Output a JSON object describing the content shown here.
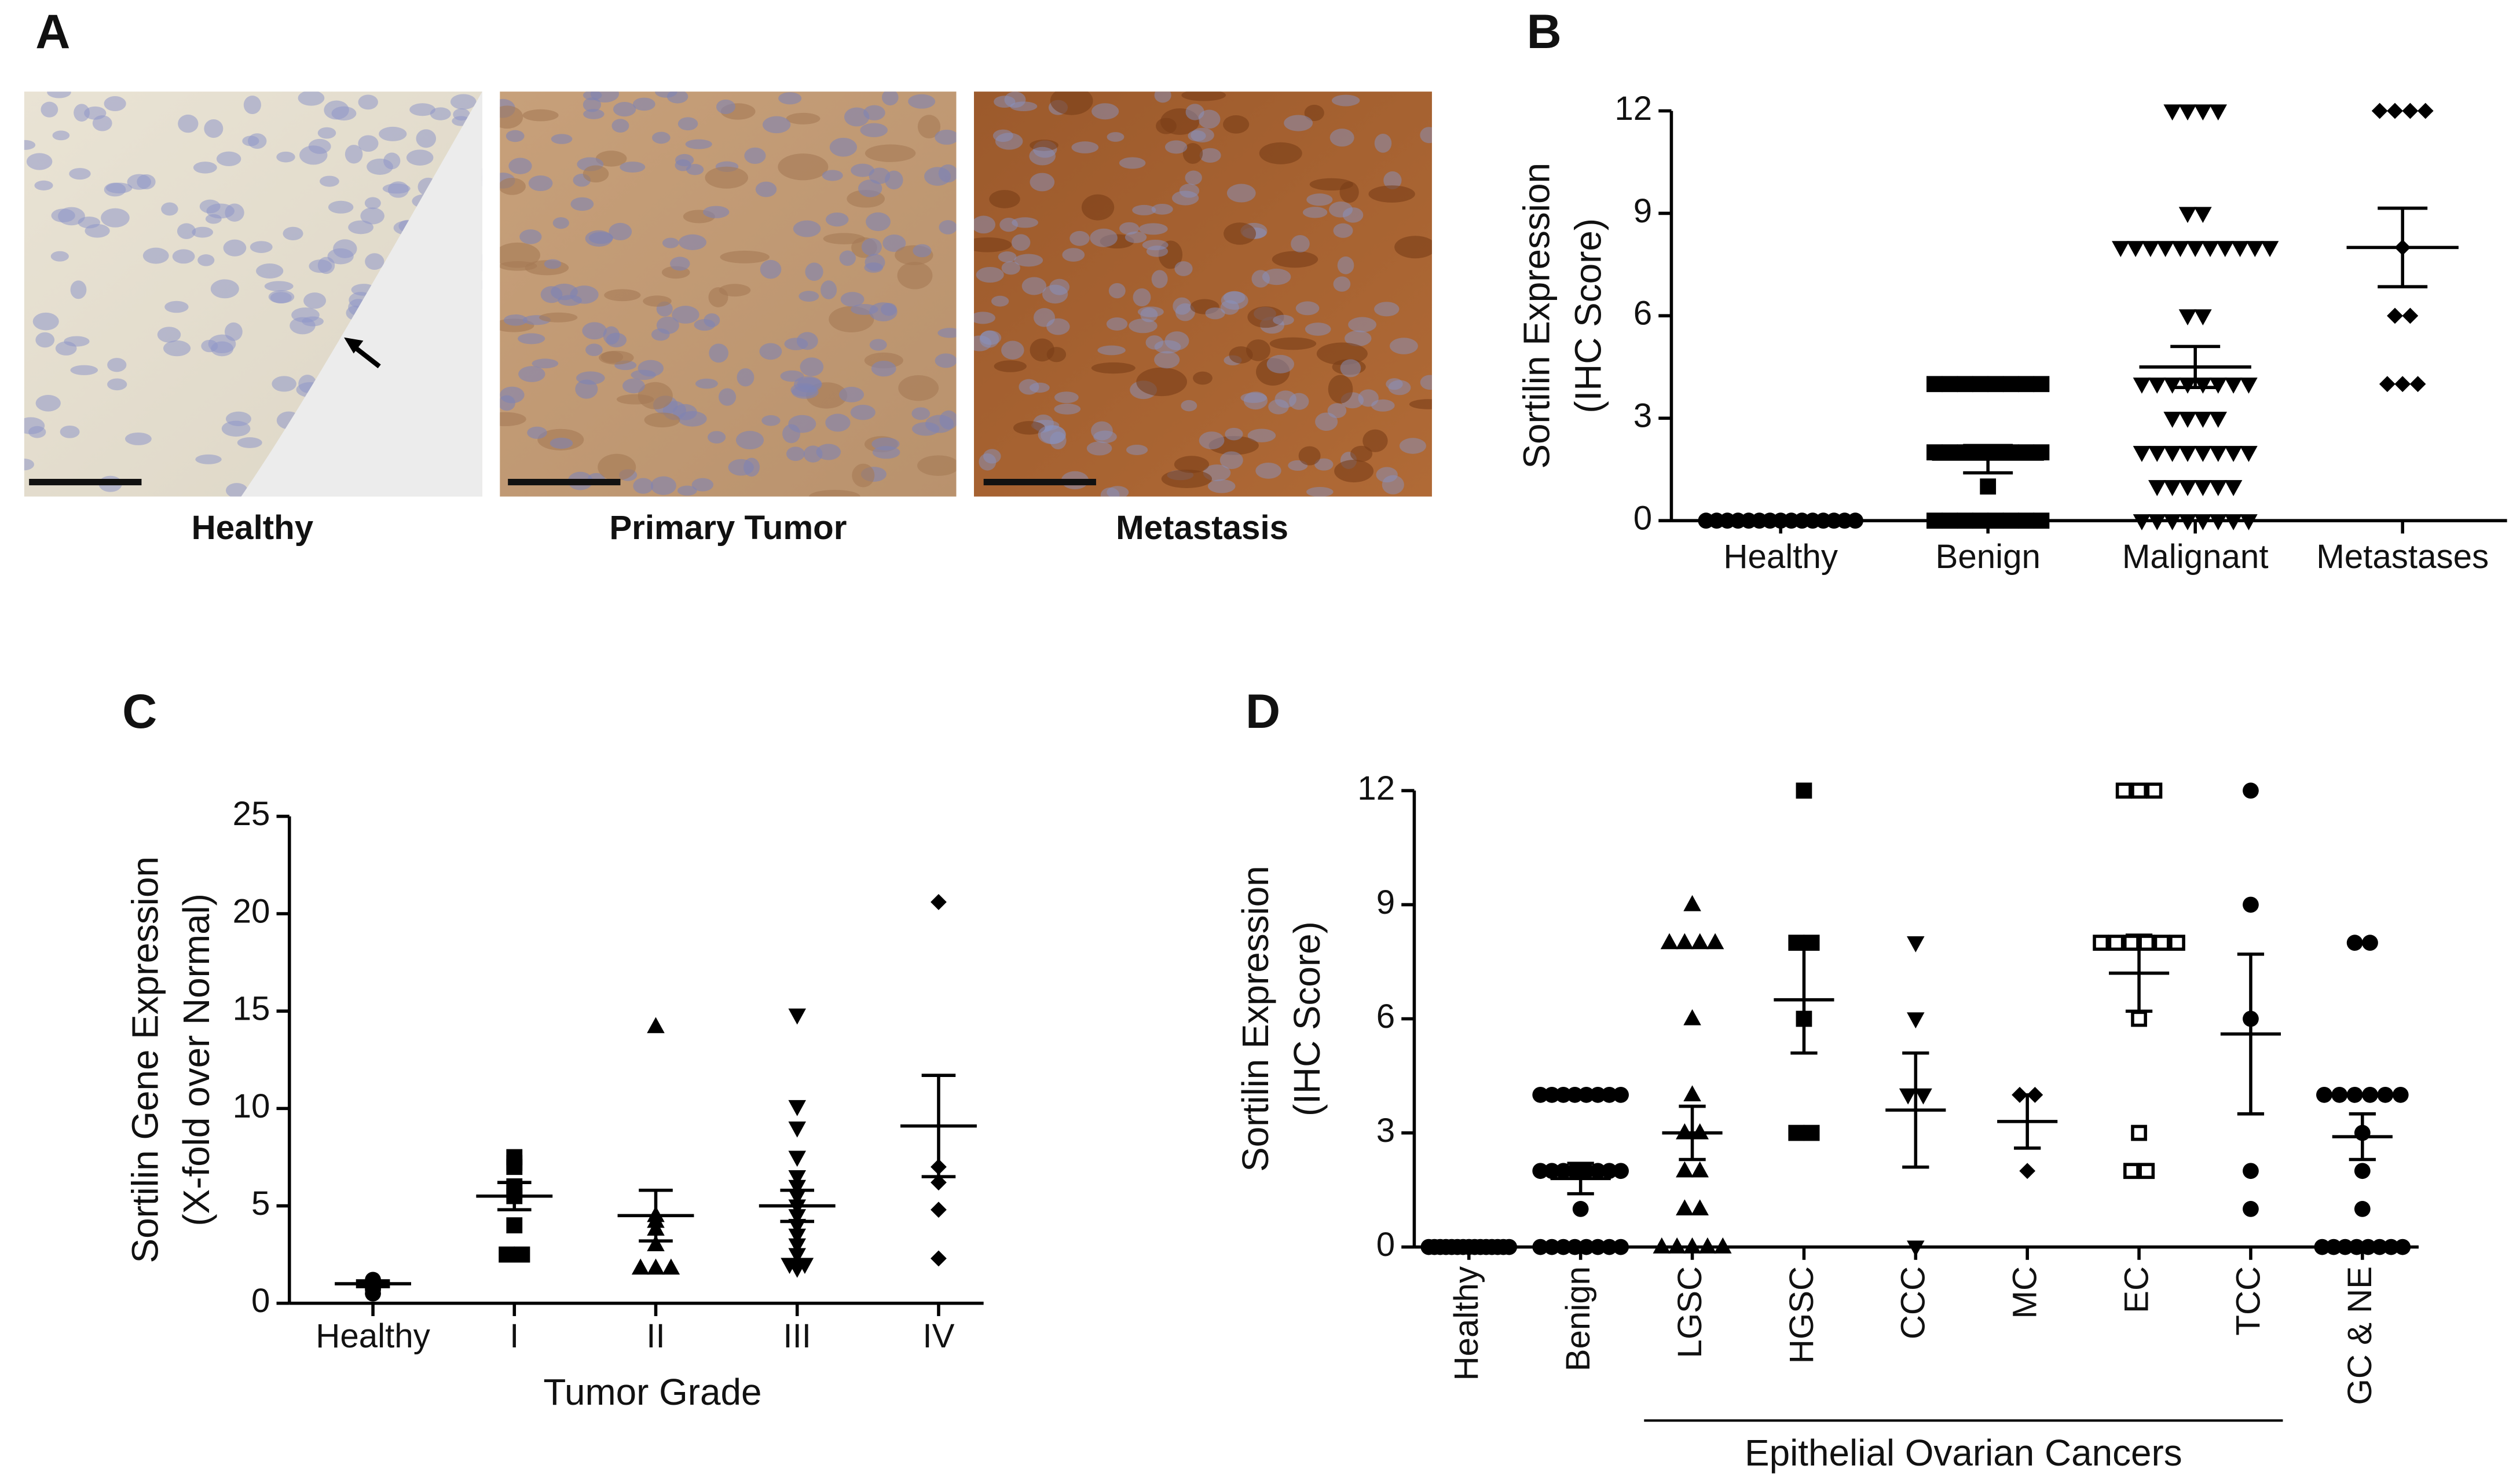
{
  "images": {
    "panel": "A",
    "captions": [
      "Healthy",
      "Primary Tumor",
      "Metastasis"
    ]
  },
  "chart_data": [
    {
      "type": "dot",
      "panel": "B",
      "ylabel": [
        "Sortilin Expression",
        "(IHC Score)"
      ],
      "categories": [
        "Healthy",
        "Benign",
        "Malignant",
        "Metastases"
      ],
      "markers": [
        "circle",
        "square",
        "triangle-down",
        "diamond"
      ],
      "color": "#000000",
      "values": [
        [
          0,
          0,
          0,
          0,
          0,
          0,
          0,
          0,
          0,
          0,
          0,
          0,
          0,
          0,
          0
        ],
        [
          0,
          0,
          0,
          0,
          0,
          0,
          0,
          0,
          1,
          2,
          2,
          2,
          2,
          2,
          2,
          2,
          2,
          4,
          4,
          4,
          4,
          4,
          4,
          4,
          4
        ],
        [
          0,
          0,
          0,
          0,
          0,
          0,
          0,
          0,
          1,
          1,
          1,
          1,
          1,
          1,
          2,
          2,
          2,
          2,
          2,
          2,
          2,
          2,
          3,
          3,
          3,
          3,
          4,
          4,
          4,
          4,
          4,
          4,
          4,
          4,
          6,
          6,
          8,
          8,
          8,
          8,
          8,
          8,
          8,
          8,
          8,
          8,
          8,
          9,
          9,
          12,
          12,
          12,
          12
        ],
        [
          4,
          4,
          4,
          6,
          6,
          8,
          12,
          12,
          12,
          12
        ]
      ],
      "means": [
        0,
        1.8,
        4.5,
        8
      ],
      "sems": [
        0,
        0.4,
        0.6,
        1.15
      ],
      "ylim": [
        0,
        12
      ],
      "yticks": [
        0,
        3,
        6,
        9,
        12
      ]
    },
    {
      "type": "dot",
      "panel": "C",
      "ylabel": [
        "Sortilin Gene Expression",
        "(X-fold over Normal)"
      ],
      "xlabel": "Tumor Grade",
      "categories": [
        "Healthy",
        "I",
        "II",
        "III",
        "IV"
      ],
      "markers": [
        "circle",
        "square",
        "triangle",
        "triangle-down",
        "diamond"
      ],
      "color": "#000000",
      "values": [
        [
          0.5,
          0.7,
          0.8,
          0.9,
          1.0,
          1.1,
          1.2
        ],
        [
          2.5,
          2.5,
          4,
          5.5,
          5.8,
          6,
          7,
          7.2,
          7.5
        ],
        [
          1.8,
          1.8,
          1.8,
          3,
          3.8,
          4.2,
          4.5,
          14.2
        ],
        [
          1.8,
          2,
          2,
          2.5,
          3,
          3.5,
          4,
          4.5,
          5,
          5.5,
          6,
          6.5,
          7.5,
          9,
          10.1,
          14.8
        ],
        [
          2.3,
          4.8,
          6.2,
          7,
          20.6
        ]
      ],
      "means": [
        1,
        5.5,
        4.5,
        5,
        9.1
      ],
      "sems": [
        0.15,
        0.7,
        1.3,
        0.8,
        2.6
      ],
      "ylim": [
        0,
        25
      ],
      "yticks": [
        0,
        5,
        10,
        15,
        20,
        25
      ]
    },
    {
      "type": "dot",
      "panel": "D",
      "ylabel": [
        "Sortilin Expression",
        "(IHC Score)"
      ],
      "categories": [
        "Healthy",
        "Benign",
        "LGSC",
        "HGSC",
        "CCC",
        "MC",
        "EC",
        "TCC",
        "GC & NE"
      ],
      "markers": [
        "circle",
        "circle",
        "triangle",
        "square",
        "triangle-down",
        "diamond",
        "square-open",
        "circle",
        "circle"
      ],
      "color": "#000000",
      "values": [
        [
          0,
          0,
          0,
          0,
          0,
          0,
          0,
          0,
          0,
          0,
          0,
          0,
          0,
          0,
          0
        ],
        [
          0,
          0,
          0,
          0,
          0,
          0,
          0,
          0,
          1,
          2,
          2,
          2,
          2,
          2,
          2,
          2,
          2,
          4,
          4,
          4,
          4,
          4,
          4,
          4,
          4
        ],
        [
          0,
          0,
          0,
          0,
          0,
          1,
          1,
          2,
          2,
          3,
          3,
          4,
          6,
          8,
          8,
          8,
          8,
          9
        ],
        [
          3,
          3,
          6,
          8,
          8,
          12
        ],
        [
          0,
          4,
          4,
          6,
          8
        ],
        [
          2,
          4,
          4
        ],
        [
          2,
          2,
          3,
          6,
          8,
          8,
          8,
          8,
          8,
          8,
          12,
          12,
          12
        ],
        [
          1,
          2,
          6,
          9,
          12
        ],
        [
          0,
          0,
          0,
          0,
          0,
          0,
          0,
          0,
          1,
          2,
          3,
          4,
          4,
          4,
          4,
          4,
          4,
          8,
          8
        ]
      ],
      "means": [
        0,
        1.8,
        3,
        6.5,
        3.6,
        3.3,
        7.2,
        5.6,
        2.9
      ],
      "sems": [
        0,
        0.4,
        0.7,
        1.4,
        1.5,
        0.7,
        1.0,
        2.1,
        0.6
      ],
      "ylim": [
        0,
        12
      ],
      "yticks": [
        0,
        3,
        6,
        9,
        12
      ],
      "annotation": "Epithelial Ovarian Cancers"
    }
  ]
}
